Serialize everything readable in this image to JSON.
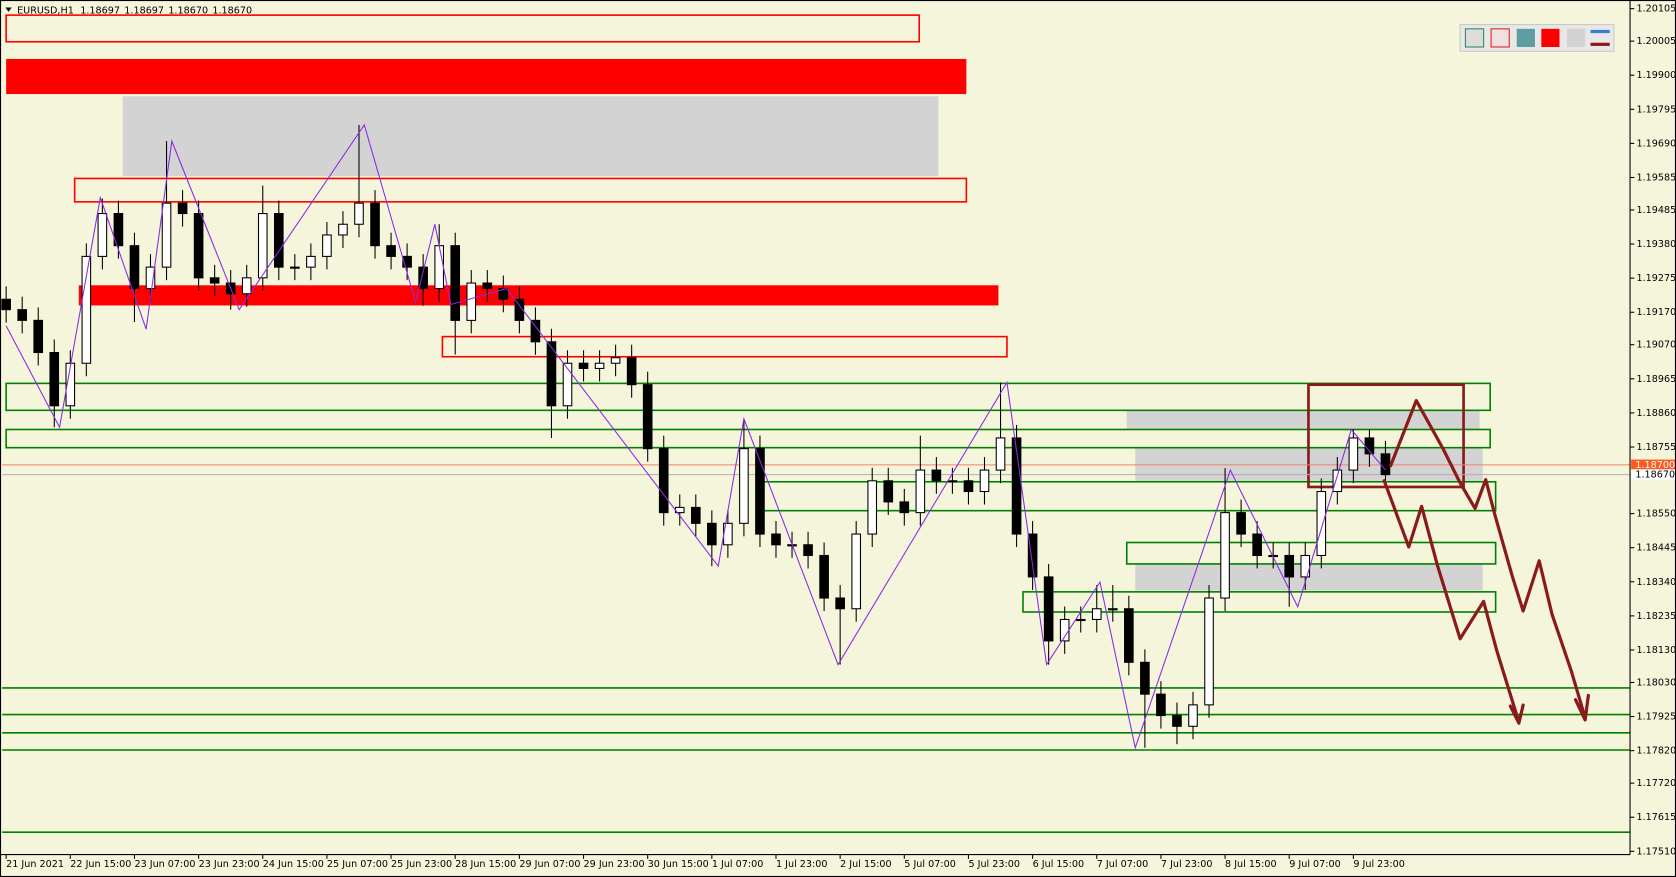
{
  "chart_data": {
    "type": "candlestick",
    "title": "EURUSD,H1",
    "quote": [
      "1.18697",
      "1.18697",
      "1.18670",
      "1.18670"
    ],
    "up_color": "#ffffff",
    "down_color": "#000000",
    "open": [
      1.1921,
      1.19178,
      1.19145,
      1.19046,
      1.18882,
      1.19013,
      1.19342,
      1.19474,
      1.19375,
      1.19243,
      1.19309,
      1.19506,
      1.19474,
      1.19276,
      1.1926,
      1.19227,
      1.19276,
      1.19474,
      1.19309,
      1.19309,
      1.19342,
      1.19408,
      1.19441,
      1.19506,
      1.19375,
      1.19342,
      1.19309,
      1.19243,
      1.19375,
      1.19145,
      1.1926,
      1.19243,
      1.1921,
      1.19145,
      1.19079,
      1.18882,
      1.19013,
      1.18997,
      1.19013,
      1.1903,
      1.18947,
      1.1875,
      1.18553,
      1.18569,
      1.1852,
      1.18454,
      1.1852,
      1.1875,
      1.18487,
      1.18454,
      1.18454,
      1.18421,
      1.1829,
      1.18257,
      1.18487,
      1.18651,
      1.18586,
      1.18553,
      1.18684,
      1.18651,
      1.18651,
      1.18618,
      1.18684,
      1.18783,
      1.18487,
      1.18355,
      1.18158,
      1.18224,
      1.18224,
      1.18257,
      1.18257,
      1.18092,
      1.17994,
      1.17928,
      1.17895,
      1.17961,
      1.1829,
      1.18553,
      1.18487,
      1.18421,
      1.18421,
      1.18355,
      1.18421,
      1.18618,
      1.18684,
      1.18783,
      1.18734
    ],
    "high": [
      1.1925,
      1.19218,
      1.19185,
      1.19086,
      1.19053,
      1.19382,
      1.1952,
      1.19514,
      1.19415,
      1.19349,
      1.19697,
      1.19546,
      1.19514,
      1.19316,
      1.193,
      1.19316,
      1.1956,
      1.19514,
      1.19349,
      1.19382,
      1.19448,
      1.19481,
      1.19747,
      1.19546,
      1.19415,
      1.19382,
      1.19349,
      1.19441,
      1.19415,
      1.193,
      1.193,
      1.19283,
      1.1925,
      1.19185,
      1.19119,
      1.19053,
      1.19053,
      1.19053,
      1.1907,
      1.1907,
      1.18987,
      1.1879,
      1.18609,
      1.18609,
      1.1856,
      1.1856,
      1.18842,
      1.1879,
      1.18527,
      1.18494,
      1.18494,
      1.18461,
      1.1833,
      1.18527,
      1.18691,
      1.18691,
      1.18626,
      1.1879,
      1.18724,
      1.18691,
      1.18691,
      1.18724,
      1.18954,
      1.18823,
      1.18527,
      1.18395,
      1.18264,
      1.18264,
      1.1833,
      1.1833,
      1.18297,
      1.18132,
      1.18034,
      1.17968,
      1.18001,
      1.1833,
      1.1869,
      1.18593,
      1.18527,
      1.18461,
      1.18461,
      1.18461,
      1.18658,
      1.18724,
      1.18809,
      1.18809,
      1.18774
    ],
    "low": [
      1.19138,
      1.19105,
      1.19006,
      1.18816,
      1.18842,
      1.18973,
      1.19302,
      1.19335,
      1.1914,
      1.19203,
      1.19269,
      1.19434,
      1.19236,
      1.1922,
      1.19178,
      1.19187,
      1.19236,
      1.19269,
      1.19269,
      1.19269,
      1.19302,
      1.19368,
      1.19401,
      1.19335,
      1.19302,
      1.19269,
      1.1919,
      1.19203,
      1.1904,
      1.19105,
      1.19203,
      1.1917,
      1.19105,
      1.19039,
      1.18783,
      1.18842,
      1.18957,
      1.18957,
      1.18973,
      1.18907,
      1.1871,
      1.18513,
      1.18513,
      1.1848,
      1.18388,
      1.18414,
      1.1848,
      1.18447,
      1.18414,
      1.18414,
      1.18381,
      1.1825,
      1.18085,
      1.18217,
      1.18447,
      1.18546,
      1.18513,
      1.18513,
      1.18611,
      1.18611,
      1.18578,
      1.18578,
      1.18644,
      1.18447,
      1.18315,
      1.18085,
      1.18118,
      1.18184,
      1.18184,
      1.18217,
      1.18052,
      1.17829,
      1.17888,
      1.1784,
      1.17855,
      1.17921,
      1.1825,
      1.18447,
      1.18381,
      1.18381,
      1.18263,
      1.18315,
      1.18381,
      1.18578,
      1.18644,
      1.18694,
      1.1864
    ],
    "close": [
      1.19178,
      1.19145,
      1.19046,
      1.18882,
      1.19013,
      1.19342,
      1.19474,
      1.19375,
      1.19243,
      1.19309,
      1.19506,
      1.19474,
      1.19276,
      1.1926,
      1.19227,
      1.19276,
      1.19474,
      1.19309,
      1.19309,
      1.19342,
      1.19408,
      1.19441,
      1.19506,
      1.19375,
      1.19342,
      1.19309,
      1.19243,
      1.19375,
      1.19145,
      1.1926,
      1.19243,
      1.1921,
      1.19145,
      1.19079,
      1.18882,
      1.19013,
      1.18997,
      1.19013,
      1.1903,
      1.18947,
      1.1875,
      1.18553,
      1.18569,
      1.1852,
      1.18454,
      1.1852,
      1.1875,
      1.18487,
      1.18454,
      1.18454,
      1.18421,
      1.1829,
      1.18257,
      1.18487,
      1.18651,
      1.18586,
      1.18553,
      1.18684,
      1.18651,
      1.18651,
      1.18618,
      1.18684,
      1.18783,
      1.18487,
      1.18355,
      1.18158,
      1.18224,
      1.18224,
      1.18257,
      1.18257,
      1.18092,
      1.17994,
      1.17928,
      1.17895,
      1.17961,
      1.1829,
      1.18553,
      1.18487,
      1.18421,
      1.18421,
      1.18355,
      1.18421,
      1.18618,
      1.18684,
      1.18783,
      1.18734,
      1.1867
    ],
    "zigzag": {
      "color": "#8a2be2",
      "x": [
        0,
        3.33,
        5.87,
        8.73,
        10.33,
        14.53,
        22.33,
        25.53,
        26.73,
        27.73,
        31.2,
        44.4,
        46,
        51.87,
        62.4,
        64.87,
        68.2,
        70.4,
        76.33,
        80.53,
        83.87,
        86
      ],
      "y": [
        1.19128,
        1.18816,
        1.19523,
        1.19118,
        1.19697,
        1.19178,
        1.19747,
        1.19201,
        1.19441,
        1.19194,
        1.19243,
        1.18388,
        1.18842,
        1.18085,
        1.18954,
        1.18085,
        1.18339,
        1.17829,
        1.18684,
        1.18263,
        1.18809,
        1.18684
      ]
    },
    "zones": [
      {
        "x": [
          0,
          56.93
        ],
        "y": [
          1.20085,
          1.20003
        ],
        "color": "#ff0000",
        "filled": false
      },
      {
        "x": [
          0,
          59.87
        ],
        "y": [
          1.1995,
          1.19842
        ],
        "color": "#ff0000",
        "filled": true
      },
      {
        "x": [
          7.27,
          58.13
        ],
        "y": [
          1.19835,
          1.19589
        ],
        "color": "#d3d3d3",
        "filled": true
      },
      {
        "x": [
          4.27,
          59.87
        ],
        "y": [
          1.19582,
          1.1951
        ],
        "color": "#ff0000",
        "filled": false
      },
      {
        "x": [
          4.53,
          61.87
        ],
        "y": [
          1.19253,
          1.19191
        ],
        "color": "#ff0000",
        "filled": true
      },
      {
        "x": [
          27.2,
          62.4
        ],
        "y": [
          1.19095,
          1.19033
        ],
        "color": "#ff0000",
        "filled": false
      },
      {
        "x": [
          69.87,
          91.87
        ],
        "y": [
          1.18868,
          1.18809
        ],
        "color": "#d3d3d3",
        "filled": true
      },
      {
        "x": [
          70.4,
          92.07
        ],
        "y": [
          1.18753,
          1.18651
        ],
        "color": "#d3d3d3",
        "filled": true
      },
      {
        "x": [
          70.4,
          92.07
        ],
        "y": [
          1.18395,
          1.18313
        ],
        "color": "#d3d3d3",
        "filled": true
      },
      {
        "x": [
          0,
          92.53
        ],
        "y": [
          1.18951,
          1.18868
        ],
        "color": "#008000",
        "filled": false
      },
      {
        "x": [
          0,
          92.53
        ],
        "y": [
          1.18809,
          1.18753
        ],
        "color": "#008000",
        "filled": false
      },
      {
        "x": [
          47.13,
          92.87
        ],
        "y": [
          1.18648,
          1.18559
        ],
        "color": "#008000",
        "filled": false
      },
      {
        "x": [
          69.87,
          92.87
        ],
        "y": [
          1.18461,
          1.18395
        ],
        "color": "#008000",
        "filled": false
      },
      {
        "x": [
          63.4,
          92.87
        ],
        "y": [
          1.18309,
          1.18247
        ],
        "color": "#008000",
        "filled": false
      },
      {
        "x": [
          81.2,
          90.87
        ],
        "y": [
          1.18947,
          1.18632
        ],
        "color": "#8b1a1a",
        "filled": false
      }
    ],
    "levels": [
      1.18013,
      1.17931,
      1.17875,
      1.17822,
      1.17569
    ],
    "level_color": "#008000",
    "ask": {
      "value": 1.187,
      "label": "1.18700"
    },
    "bid": {
      "value": 1.1867,
      "label": "1.18670"
    },
    "ylim": [
      1.175,
      1.20125
    ],
    "yticks": [
      1.20105,
      1.20005,
      {
        "value": 1.199,
        "label": "1.19900"
      },
      1.19795,
      {
        "value": 1.1969,
        "label": "1.19690"
      },
      1.19585,
      1.19485,
      {
        "value": 1.1938,
        "label": "1.19380"
      },
      1.19275,
      {
        "value": 1.1917,
        "label": "1.19170"
      },
      {
        "value": 1.1907,
        "label": "1.19070"
      },
      1.18965,
      {
        "value": 1.1886,
        "label": "1.18860"
      },
      1.18755,
      {
        "value": 1.1855,
        "label": "1.18550"
      },
      1.18445,
      {
        "value": 1.1834,
        "label": "1.18340"
      },
      1.18235,
      {
        "value": 1.1813,
        "label": "1.18130"
      },
      {
        "value": 1.1803,
        "label": "1.18030"
      },
      1.17925,
      {
        "value": 1.1782,
        "label": "1.17820"
      },
      {
        "value": 1.1772,
        "label": "1.17720"
      },
      1.17615,
      {
        "value": 1.1751,
        "label": "1.17510"
      }
    ],
    "xlim": [
      -0.25,
      101.25
    ],
    "xticks": [
      {
        "value": 0,
        "label": "21 Jun 2021"
      },
      {
        "value": 4,
        "label": "22 Jun 15:00"
      },
      {
        "value": 8,
        "label": "23 Jun 07:00"
      },
      {
        "value": 12,
        "label": "23 Jun 23:00"
      },
      {
        "value": 16,
        "label": "24 Jun 15:00"
      },
      {
        "value": 20,
        "label": "25 Jun 07:00"
      },
      {
        "value": 24,
        "label": "25 Jun 23:00"
      },
      {
        "value": 28,
        "label": "28 Jun 15:00"
      },
      {
        "value": 32,
        "label": "29 Jun 07:00"
      },
      {
        "value": 36,
        "label": "29 Jun 23:00"
      },
      {
        "value": 40,
        "label": "30 Jun 15:00"
      },
      {
        "value": 44,
        "label": "1 Jul 07:00"
      },
      {
        "value": 48,
        "label": "1 Jul 23:00"
      },
      {
        "value": 52,
        "label": "2 Jul 15:00"
      },
      {
        "value": 56,
        "label": "5 Jul 07:00"
      },
      {
        "value": 60,
        "label": "5 Jul 23:00"
      },
      {
        "value": 64,
        "label": "6 Jul 15:00"
      },
      {
        "value": 68,
        "label": "7 Jul 07:00"
      },
      {
        "value": 72,
        "label": "7 Jul 23:00"
      },
      {
        "value": 76,
        "label": "8 Jul 15:00"
      },
      {
        "value": 80,
        "label": "9 Jul 07:00"
      },
      {
        "value": 84,
        "label": "9 Jul 23:00"
      }
    ],
    "grid": false
  }
}
